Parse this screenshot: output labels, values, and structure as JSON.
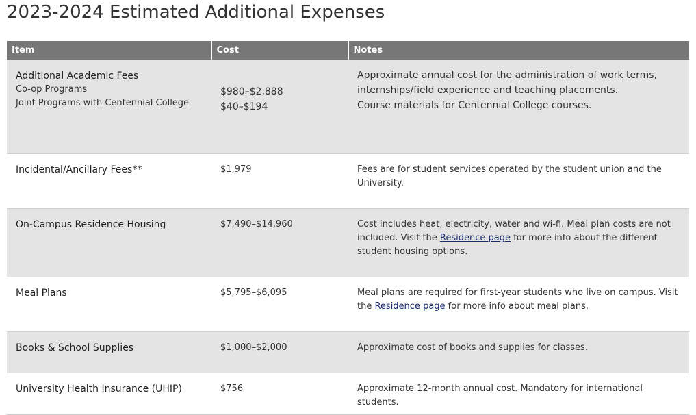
{
  "page": {
    "title": "2023-2024 Estimated Additional Expenses"
  },
  "table": {
    "headers": {
      "item": "Item",
      "cost": "Cost",
      "notes": "Notes"
    },
    "rows": [
      {
        "item": "Additional Academic Fees",
        "sub_items": [
          "Co-op Programs",
          "Joint Programs with Centennial College"
        ],
        "costs": [
          "$980–$2,888",
          "$40–$194"
        ],
        "notes": [
          "Approximate annual cost for the administration of work terms,",
          "internships/field experience and teaching placements.",
          "Course materials for Centennial College courses."
        ]
      },
      {
        "item": "Incidental/Ancillary Fees**",
        "cost": "$1,979",
        "notes": "Fees are for student services operated by the student union and the University."
      },
      {
        "item": "On-Campus Residence Housing",
        "cost": "$7,490–$14,960",
        "notes_before": "Cost includes heat, electricity, water and wi-fi. Meal plan costs are not included. Visit the ",
        "notes_link": "Residence page",
        "notes_after": " for more info about the different student housing options."
      },
      {
        "item": "Meal Plans",
        "cost": "$5,795–$6,095",
        "notes_before": "Meal plans are required for first-year students who live on campus. Visit the ",
        "notes_link": "Residence page",
        "notes_after": " for more info about meal plans."
      },
      {
        "item": "Books & School Supplies",
        "cost": "$1,000–$2,000",
        "notes": "Approximate cost of books and supplies for classes."
      },
      {
        "item": "University Health Insurance (UHIP)",
        "cost": "$756",
        "notes": "Approximate 12-month annual cost. Mandatory for international students."
      }
    ]
  },
  "colors": {
    "header_bg": "#777777",
    "shaded_row_bg": "#e4e4e4",
    "link": "#1a2b6b"
  }
}
